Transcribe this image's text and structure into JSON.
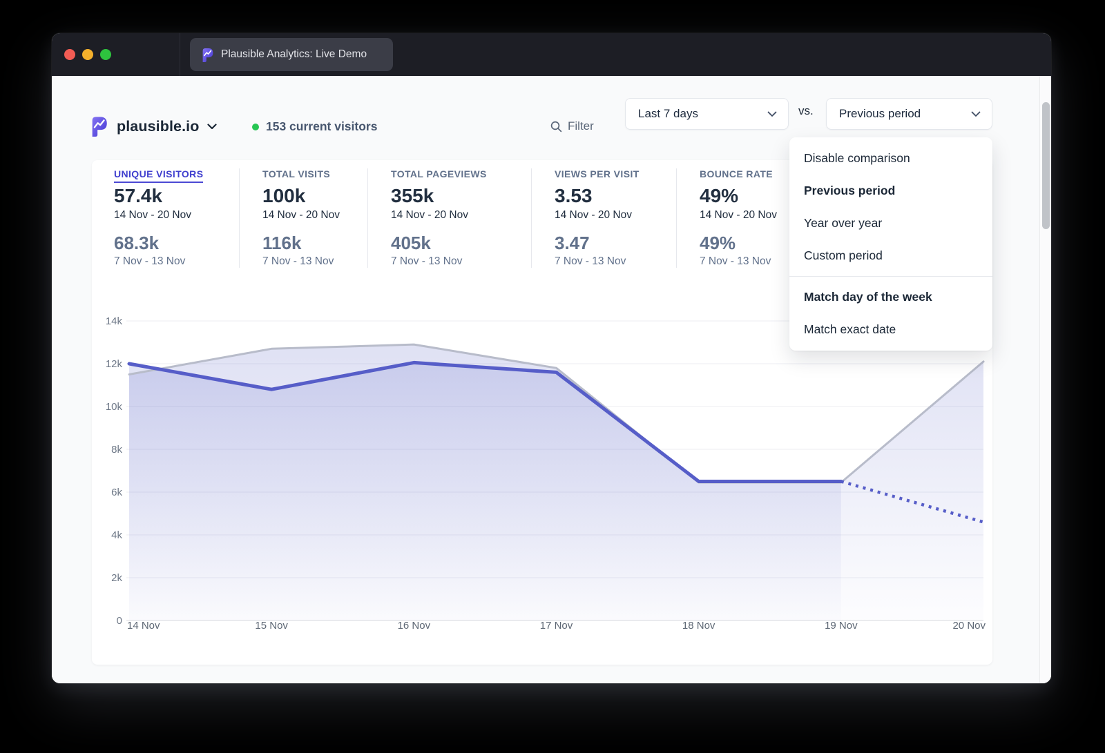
{
  "window": {
    "tab_title": "Plausible Analytics: Live Demo"
  },
  "header": {
    "site_name": "plausible.io",
    "current_visitors": "153 current visitors",
    "filter_label": "Filter",
    "date_range": "Last 7 days",
    "vs_label": "vs.",
    "comparison": "Previous period"
  },
  "icons": {
    "site_logo": "plausible-logo",
    "filter": "search-icon",
    "selects": "chevron-down-icon"
  },
  "colors": {
    "accent_line": "#565dc8",
    "comparison_line": "#b8bcca",
    "area_fill": "#636cc9",
    "selected_metric": "#403fce",
    "visitors_dot": "#27c653",
    "traffic_red": "#f25c54",
    "traffic_yellow": "#f3b02c",
    "traffic_green": "#2ec33e"
  },
  "comparison_menu": {
    "sections": [
      {
        "items": [
          {
            "label": "Disable comparison",
            "bold": false
          },
          {
            "label": "Previous period",
            "bold": true
          },
          {
            "label": "Year over year",
            "bold": false
          },
          {
            "label": "Custom period",
            "bold": false
          }
        ]
      },
      {
        "items": [
          {
            "label": "Match day of the week",
            "bold": true
          },
          {
            "label": "Match exact date",
            "bold": false
          }
        ]
      }
    ]
  },
  "metrics": [
    {
      "label": "UNIQUE VISITORS",
      "selected": true,
      "value": "57.4k",
      "period": "14 Nov - 20 Nov",
      "prev_value": "68.3k",
      "prev_period": "7 Nov - 13 Nov"
    },
    {
      "label": "TOTAL VISITS",
      "selected": false,
      "value": "100k",
      "period": "14 Nov - 20 Nov",
      "prev_value": "116k",
      "prev_period": "7 Nov - 13 Nov"
    },
    {
      "label": "TOTAL PAGEVIEWS",
      "selected": false,
      "value": "355k",
      "period": "14 Nov - 20 Nov",
      "prev_value": "405k",
      "prev_period": "7 Nov - 13 Nov"
    },
    {
      "label": "VIEWS PER VISIT",
      "selected": false,
      "value": "3.53",
      "period": "14 Nov - 20 Nov",
      "prev_value": "3.47",
      "prev_period": "7 Nov - 13 Nov"
    },
    {
      "label": "BOUNCE RATE",
      "selected": false,
      "value": "49%",
      "period": "14 Nov - 20 Nov",
      "prev_value": "49%",
      "prev_period": "7 Nov - 13 Nov"
    }
  ],
  "chart_data": {
    "type": "area",
    "title": "Unique visitors",
    "x": [
      "14 Nov",
      "15 Nov",
      "16 Nov",
      "17 Nov",
      "18 Nov",
      "19 Nov",
      "20 Nov"
    ],
    "series": [
      {
        "name": "Unique visitors (14 Nov - 20 Nov)",
        "color": "#565dc8",
        "values": [
          12000,
          10800,
          12050,
          11600,
          6500,
          6500,
          4600
        ],
        "dotted_from_index": 5
      },
      {
        "name": "Previous period (7 Nov - 13 Nov)",
        "color": "#b8bcca",
        "values": [
          11500,
          12700,
          12900,
          11800,
          6450,
          6450,
          12100
        ]
      }
    ],
    "y_ticks": [
      "0",
      "2k",
      "4k",
      "6k",
      "8k",
      "10k",
      "12k",
      "14k"
    ],
    "y_tick_step": 2000,
    "ylim": [
      0,
      14000
    ],
    "grid": true,
    "legend": "none"
  }
}
